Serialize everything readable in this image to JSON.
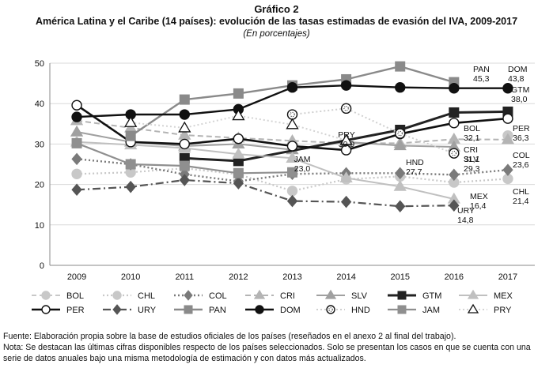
{
  "header": {
    "title": "Gráfico 2",
    "subtitle": "América Latina y el Caribe (14 países): evolución de las tasas estimadas de evasión del IVA, 2009-2017",
    "unit_note": "(En porcentajes)"
  },
  "footer": {
    "source": "Fuente: Elaboración propia sobre la base de estudios oficiales de los países (reseñados en el anexo 2 al final del trabajo).",
    "note_line1": "Nota: Se destacan las últimas cifras disponibles respecto de los países seleccionados. Solo se presentan los casos en que se cuenta con una",
    "note_line2": "serie de datos anuales bajo una misma metodología de estimación y con datos más actualizados."
  },
  "chart_data": {
    "type": "line",
    "xlabel": "",
    "ylabel": "",
    "ylim": [
      0,
      50
    ],
    "yticks": [
      0,
      10,
      20,
      30,
      40,
      50
    ],
    "categories": [
      "2009",
      "2010",
      "2011",
      "2012",
      "2013",
      "2014",
      "2015",
      "2016",
      "2017"
    ],
    "grid": true,
    "legend_position": "bottom",
    "series": [
      {
        "name": "BOL",
        "color": "#c8c8c8",
        "values": [
          null,
          null,
          null,
          null,
          null,
          null,
          null,
          null,
          32.1
        ]
      },
      {
        "name": "CHL",
        "color": "#c8c8c8",
        "values": [
          22.6,
          23.0,
          24.0,
          22.5,
          18.4,
          21.3,
          22.0,
          20.5,
          21.4
        ]
      },
      {
        "name": "COL",
        "color": "#7a7a7a",
        "values": [
          26.3,
          25.0,
          22.5,
          20.8,
          22.6,
          22.8,
          22.8,
          22.4,
          23.6
        ]
      },
      {
        "name": "CRI",
        "color": "#b4b4b4",
        "values": [
          35.8,
          34.0,
          32.2,
          31.5,
          30.8,
          30.2,
          30.2,
          31.2,
          31.1
        ]
      },
      {
        "name": "SLV",
        "color": "#a0a0a0",
        "values": [
          33.0,
          30.5,
          29.5,
          30.0,
          28.6,
          30.5,
          29.6,
          29.3,
          null
        ]
      },
      {
        "name": "GTM",
        "color": "#222222",
        "values": [
          null,
          null,
          26.5,
          25.8,
          null,
          null,
          33.5,
          37.8,
          38.0
        ]
      },
      {
        "name": "MEX",
        "color": "#c0c0c0",
        "values": [
          30.5,
          29.8,
          29.0,
          27.5,
          26.5,
          21.6,
          19.5,
          16.4,
          null
        ]
      },
      {
        "name": "PER",
        "color": "#111111",
        "values": [
          39.6,
          30.5,
          30.0,
          31.3,
          29.5,
          28.5,
          32.5,
          35.2,
          36.3
        ]
      },
      {
        "name": "URY",
        "color": "#555555",
        "values": [
          18.7,
          19.4,
          21.1,
          20.3,
          15.9,
          15.7,
          14.6,
          14.8,
          null
        ]
      },
      {
        "name": "PAN",
        "color": "#8a8a8a",
        "values": [
          null,
          32.0,
          41.0,
          42.5,
          44.5,
          46.0,
          49.2,
          45.3,
          null
        ]
      },
      {
        "name": "DOM",
        "color": "#111111",
        "values": [
          36.7,
          37.3,
          37.3,
          38.6,
          44.0,
          44.5,
          44.0,
          43.8,
          43.8
        ]
      },
      {
        "name": "HND",
        "color": "#cfcfcf",
        "values": [
          null,
          null,
          null,
          null,
          37.3,
          38.8,
          32.6,
          27.7,
          null
        ]
      },
      {
        "name": "JAM",
        "color": "#8f8f8f",
        "values": [
          30.2,
          25.0,
          24.6,
          22.8,
          23.0,
          null,
          null,
          null,
          null
        ]
      },
      {
        "name": "PRY",
        "color": "#d4d4d4",
        "values": [
          null,
          35.3,
          34.0,
          37.0,
          34.8,
          30.9,
          null,
          null,
          null
        ]
      }
    ],
    "end_labels": [
      {
        "country": "PAN",
        "value": "45,3"
      },
      {
        "country": "DOM",
        "value": "43,8"
      },
      {
        "country": "GTM",
        "value": "38,0"
      },
      {
        "country": "BOL",
        "value": "32,1"
      },
      {
        "country": "PER",
        "value": "36,3"
      },
      {
        "country": "COL",
        "value": "23,6"
      },
      {
        "country": "CRI",
        "value": "31,1"
      },
      {
        "country": "SLV",
        "value": "29,3"
      },
      {
        "country": "HND",
        "value": "27,7"
      },
      {
        "country": "PRY",
        "value": "30,9"
      },
      {
        "country": "JAM",
        "value": "23,0"
      },
      {
        "country": "MEX",
        "value": "16,4"
      },
      {
        "country": "URY",
        "value": "14,8"
      },
      {
        "country": "CHL",
        "value": "21,4"
      }
    ]
  }
}
